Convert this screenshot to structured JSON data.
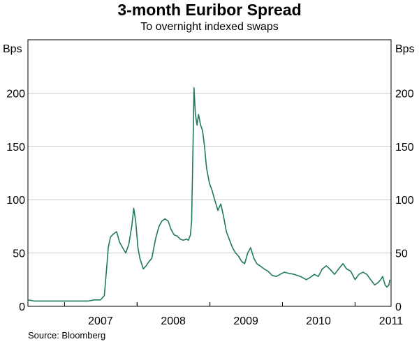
{
  "chart_data": {
    "type": "line",
    "title": "3-month Euribor Spread",
    "subtitle": "To overnight indexed swaps",
    "ylabel_left": "Bps",
    "ylabel_right": "Bps",
    "ylim": [
      0,
      250
    ],
    "yticks": [
      0,
      50,
      100,
      150,
      200
    ],
    "xlim": [
      "2006-07-01",
      "2011-07-01"
    ],
    "x_tick_labels": [
      "2007",
      "2008",
      "2009",
      "2010",
      "2011"
    ],
    "grid": true,
    "color": "#1f7a5a",
    "source": "Source: Bloomberg",
    "series": [
      {
        "x": [
          "2006-07-01",
          "2006-08-01",
          "2006-09-01",
          "2006-10-01",
          "2006-11-01",
          "2006-12-01",
          "2007-01-01",
          "2007-02-01",
          "2007-03-01",
          "2007-04-01",
          "2007-05-01",
          "2007-06-01",
          "2007-07-01",
          "2007-07-20",
          "2007-08-05",
          "2007-08-09",
          "2007-08-20",
          "2007-09-05",
          "2007-09-20",
          "2007-10-05",
          "2007-10-20",
          "2007-11-05",
          "2007-11-20",
          "2007-12-05",
          "2007-12-15",
          "2007-12-25",
          "2008-01-05",
          "2008-01-15",
          "2008-02-01",
          "2008-02-15",
          "2008-03-01",
          "2008-03-15",
          "2008-03-25",
          "2008-04-05",
          "2008-04-20",
          "2008-05-05",
          "2008-05-20",
          "2008-06-05",
          "2008-06-20",
          "2008-07-05",
          "2008-07-20",
          "2008-08-05",
          "2008-08-20",
          "2008-09-05",
          "2008-09-15",
          "2008-09-25",
          "2008-10-01",
          "2008-10-08",
          "2008-10-13",
          "2008-10-20",
          "2008-10-28",
          "2008-11-05",
          "2008-11-15",
          "2008-11-25",
          "2008-12-05",
          "2008-12-15",
          "2008-12-30",
          "2009-01-10",
          "2009-01-25",
          "2009-02-10",
          "2009-02-25",
          "2009-03-10",
          "2009-03-25",
          "2009-04-10",
          "2009-04-25",
          "2009-05-10",
          "2009-05-25",
          "2009-06-10",
          "2009-06-25",
          "2009-07-10",
          "2009-07-25",
          "2009-08-10",
          "2009-08-25",
          "2009-09-10",
          "2009-10-01",
          "2009-10-20",
          "2009-11-10",
          "2009-12-01",
          "2009-12-20",
          "2010-01-10",
          "2010-02-01",
          "2010-03-01",
          "2010-04-01",
          "2010-05-01",
          "2010-05-20",
          "2010-06-10",
          "2010-06-30",
          "2010-07-20",
          "2010-08-10",
          "2010-09-01",
          "2010-09-20",
          "2010-10-10",
          "2010-11-01",
          "2010-11-20",
          "2010-12-10",
          "2011-01-01",
          "2011-01-20",
          "2011-02-10",
          "2011-03-01",
          "2011-03-20",
          "2011-04-10",
          "2011-04-25",
          "2011-05-10",
          "2011-05-20",
          "2011-06-01",
          "2011-06-10",
          "2011-06-20",
          "2011-06-25"
        ],
        "y": [
          6,
          5,
          5,
          5,
          5,
          5,
          5,
          5,
          5,
          5,
          5,
          6,
          6,
          10,
          45,
          55,
          65,
          68,
          70,
          60,
          55,
          50,
          58,
          75,
          92,
          80,
          55,
          45,
          35,
          38,
          42,
          45,
          55,
          65,
          75,
          80,
          82,
          80,
          72,
          67,
          66,
          63,
          62,
          63,
          62,
          67,
          80,
          150,
          205,
          180,
          170,
          180,
          170,
          165,
          150,
          130,
          115,
          110,
          100,
          90,
          96,
          85,
          70,
          62,
          55,
          50,
          47,
          42,
          40,
          50,
          55,
          45,
          40,
          38,
          35,
          33,
          29,
          28,
          30,
          32,
          31,
          30,
          28,
          25,
          27,
          30,
          28,
          35,
          38,
          34,
          30,
          35,
          40,
          35,
          33,
          25,
          30,
          32,
          30,
          25,
          20,
          22,
          25,
          28,
          20,
          18,
          20,
          25
        ],
        "_note": "approximate"
      }
    ]
  }
}
